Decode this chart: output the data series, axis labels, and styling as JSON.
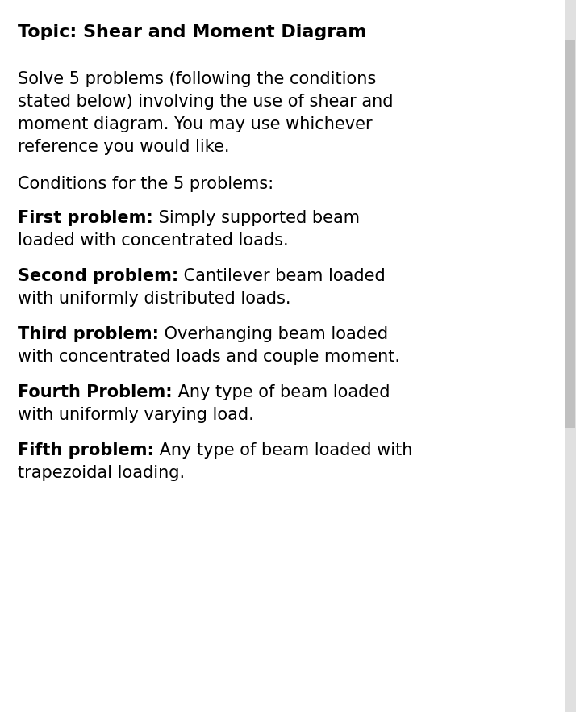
{
  "background_color": "#ffffff",
  "title": "Topic: Shear and Moment Diagram",
  "intro_lines": [
    "Solve 5 problems (following the conditions",
    "stated below) involving the use of shear and",
    "moment diagram. You may use whichever",
    "reference you would like."
  ],
  "conditions_header": "Conditions for the 5 problems:",
  "problems": [
    {
      "label": "First problem:",
      "line1": " Simply supported beam",
      "line2": "loaded with concentrated loads."
    },
    {
      "label": "Second problem:",
      "line1": " Cantilever beam loaded",
      "line2": "with uniformly distributed loads."
    },
    {
      "label": "Third problem:",
      "line1": " Overhanging beam loaded",
      "line2": "with concentrated loads and couple moment."
    },
    {
      "label": "Fourth Problem:",
      "line1": " Any type of beam loaded",
      "line2": "with uniformly varying load."
    },
    {
      "label": "Fifth problem:",
      "line1": " Any type of beam loaded with",
      "line2": "trapezoidal loading."
    }
  ],
  "text_color": "#000000",
  "scrollbar_bg": "#d0d0d0",
  "scrollbar_thumb": "#b0b0b0",
  "font_size_title": 16,
  "font_size_body": 15
}
